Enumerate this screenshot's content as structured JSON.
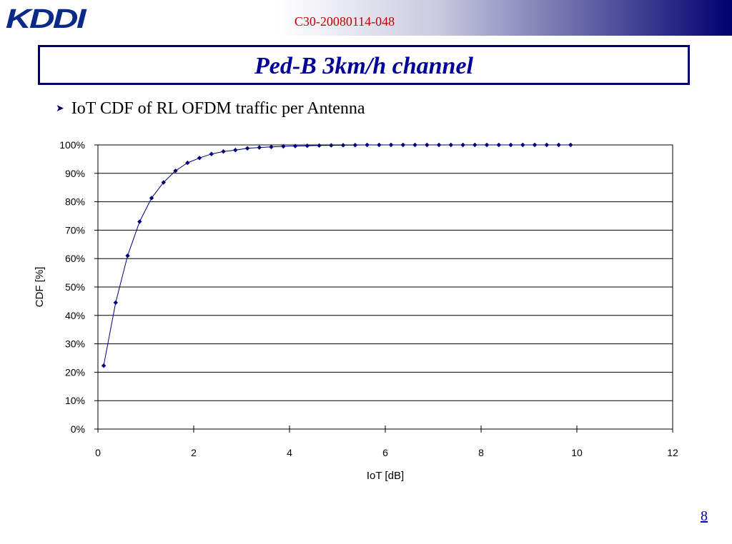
{
  "header": {
    "logo_text": "KDDI",
    "doc_id": "C30-20080114-048"
  },
  "slide": {
    "title": "Ped-B 3km/h channel",
    "bullet": "IoT CDF of RL OFDM traffic per Antenna",
    "page_number": "8"
  },
  "colors": {
    "series": "#000080",
    "title": "#000099",
    "doc_id": "#c00000",
    "header_gradient_end": "#000070"
  },
  "chart_data": {
    "type": "line",
    "xlabel": "IoT [dB]",
    "ylabel": "CDF [%]",
    "xlim": [
      0,
      12
    ],
    "ylim": [
      0,
      100
    ],
    "x_ticks": [
      0,
      2,
      4,
      6,
      8,
      10,
      12
    ],
    "x_tick_labels": [
      "0",
      "2",
      "4",
      "6",
      "8",
      "10",
      "12"
    ],
    "y_ticks": [
      0,
      10,
      20,
      30,
      40,
      50,
      60,
      70,
      80,
      90,
      100
    ],
    "y_tick_labels": [
      "0%",
      "10%",
      "20%",
      "30%",
      "40%",
      "50%",
      "60%",
      "70%",
      "80%",
      "90%",
      "100%"
    ],
    "grid": "horizontal",
    "legend": "none",
    "series": [
      {
        "marker": "diamond",
        "x": [
          0.12,
          0.37,
          0.62,
          0.87,
          1.12,
          1.37,
          1.62,
          1.87,
          2.12,
          2.37,
          2.62,
          2.87,
          3.12,
          3.37,
          3.62,
          3.87,
          4.12,
          4.37,
          4.62,
          4.87,
          5.12,
          5.37,
          5.62,
          5.87,
          6.12,
          6.37,
          6.62,
          6.87,
          7.12,
          7.37,
          7.62,
          7.87,
          8.12,
          8.37,
          8.62,
          8.87,
          9.12,
          9.37,
          9.62,
          9.87
        ],
        "y": [
          22.3,
          44.5,
          61.0,
          73.0,
          81.3,
          86.8,
          90.9,
          93.7,
          95.4,
          96.8,
          97.7,
          98.2,
          98.8,
          99.1,
          99.3,
          99.5,
          99.6,
          99.7,
          99.8,
          99.85,
          99.9,
          99.95,
          100,
          100,
          100,
          100,
          100,
          100,
          100,
          100,
          100,
          100,
          100,
          100,
          100,
          100,
          100,
          100,
          100,
          100
        ]
      }
    ]
  }
}
